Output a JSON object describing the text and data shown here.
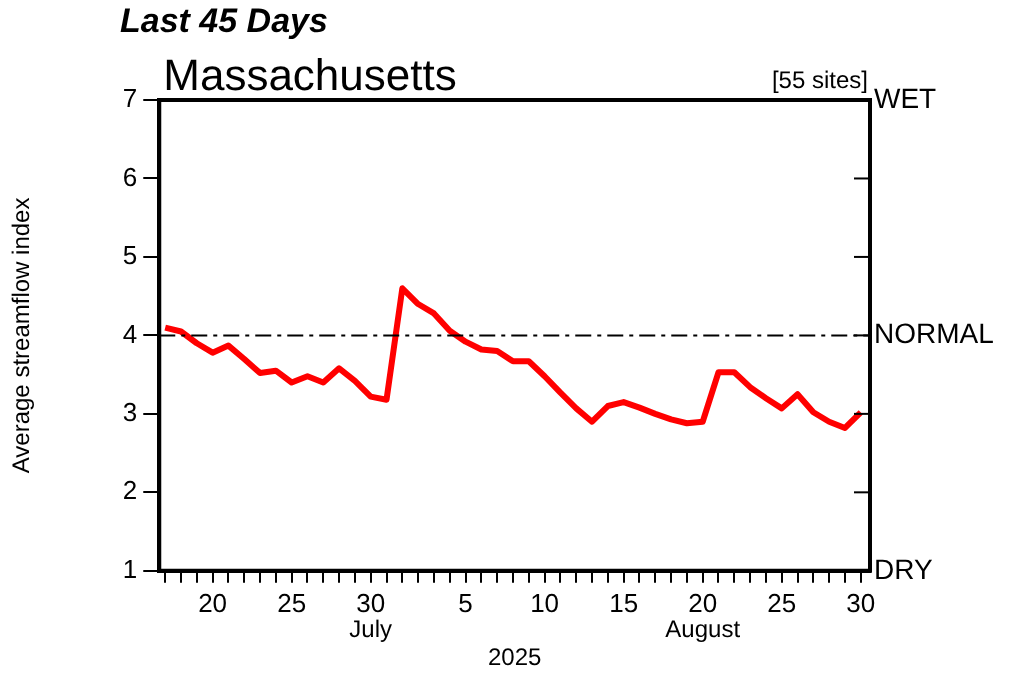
{
  "chart_data": {
    "type": "line",
    "title": "Last 45 Days",
    "subtitle": "Massachusetts",
    "xlabel": "2025",
    "ylabel": "Average streamflow index",
    "annotations": [
      "[55 sites]",
      "July",
      "August",
      "WET",
      "DRY"
    ],
    "x": [
      "2025-07-17",
      "2025-07-18",
      "2025-07-19",
      "2025-07-20",
      "2025-07-21",
      "2025-07-22",
      "2025-07-23",
      "2025-07-24",
      "2025-07-25",
      "2025-07-26",
      "2025-07-27",
      "2025-07-28",
      "2025-07-29",
      "2025-07-30",
      "2025-07-31",
      "2025-08-01",
      "2025-08-02",
      "2025-08-03",
      "2025-08-04",
      "2025-08-05",
      "2025-08-06",
      "2025-08-07",
      "2025-08-08",
      "2025-08-09",
      "2025-08-10",
      "2025-08-11",
      "2025-08-12",
      "2025-08-13",
      "2025-08-14",
      "2025-08-15",
      "2025-08-16",
      "2025-08-17",
      "2025-08-18",
      "2025-08-19",
      "2025-08-20",
      "2025-08-21",
      "2025-08-22",
      "2025-08-23",
      "2025-08-24",
      "2025-08-25",
      "2025-08-26",
      "2025-08-27",
      "2025-08-28",
      "2025-08-29",
      "2025-08-30"
    ],
    "series": [
      {
        "color": "#ff0000",
        "values": [
          4.1,
          4.05,
          3.9,
          3.78,
          3.87,
          3.7,
          3.52,
          3.55,
          3.4,
          3.48,
          3.4,
          3.58,
          3.42,
          3.22,
          3.18,
          4.6,
          4.4,
          4.28,
          4.06,
          3.92,
          3.82,
          3.8,
          3.67,
          3.67,
          3.48,
          3.27,
          3.07,
          2.9,
          3.1,
          3.15,
          3.08,
          3.0,
          2.93,
          2.88,
          2.9,
          3.53,
          3.53,
          3.34,
          3.2,
          3.07,
          3.25,
          3.02,
          2.9,
          2.82,
          3.02
        ]
      }
    ],
    "xlim": [
      "2025-07-16T15:00",
      "2025-08-30T14:00"
    ],
    "xticks": [
      {
        "value": "2025-07-17",
        "label": null
      },
      {
        "value": "2025-07-18",
        "label": null
      },
      {
        "value": "2025-07-19",
        "label": null
      },
      {
        "value": "2025-07-20",
        "label": "20"
      },
      {
        "value": "2025-07-21",
        "label": null
      },
      {
        "value": "2025-07-22",
        "label": null
      },
      {
        "value": "2025-07-23",
        "label": null
      },
      {
        "value": "2025-07-24",
        "label": null
      },
      {
        "value": "2025-07-25",
        "label": "25"
      },
      {
        "value": "2025-07-26",
        "label": null
      },
      {
        "value": "2025-07-27",
        "label": null
      },
      {
        "value": "2025-07-28",
        "label": null
      },
      {
        "value": "2025-07-29",
        "label": null
      },
      {
        "value": "2025-07-30",
        "label": "30"
      },
      {
        "value": "2025-07-31",
        "label": null
      },
      {
        "value": "2025-08-01",
        "label": null
      },
      {
        "value": "2025-08-02",
        "label": null
      },
      {
        "value": "2025-08-03",
        "label": null
      },
      {
        "value": "2025-08-04",
        "label": null
      },
      {
        "value": "2025-08-05",
        "label": "5"
      },
      {
        "value": "2025-08-06",
        "label": null
      },
      {
        "value": "2025-08-07",
        "label": null
      },
      {
        "value": "2025-08-08",
        "label": null
      },
      {
        "value": "2025-08-09",
        "label": null
      },
      {
        "value": "2025-08-10",
        "label": "10"
      },
      {
        "value": "2025-08-11",
        "label": null
      },
      {
        "value": "2025-08-12",
        "label": null
      },
      {
        "value": "2025-08-13",
        "label": null
      },
      {
        "value": "2025-08-14",
        "label": null
      },
      {
        "value": "2025-08-15",
        "label": "15"
      },
      {
        "value": "2025-08-16",
        "label": null
      },
      {
        "value": "2025-08-17",
        "label": null
      },
      {
        "value": "2025-08-18",
        "label": null
      },
      {
        "value": "2025-08-19",
        "label": null
      },
      {
        "value": "2025-08-20",
        "label": "20"
      },
      {
        "value": "2025-08-21",
        "label": null
      },
      {
        "value": "2025-08-22",
        "label": null
      },
      {
        "value": "2025-08-23",
        "label": null
      },
      {
        "value": "2025-08-24",
        "label": null
      },
      {
        "value": "2025-08-25",
        "label": "25"
      },
      {
        "value": "2025-08-26",
        "label": null
      },
      {
        "value": "2025-08-27",
        "label": null
      },
      {
        "value": "2025-08-28",
        "label": null
      },
      {
        "value": "2025-08-29",
        "label": null
      },
      {
        "value": "2025-08-30",
        "label": "30"
      }
    ],
    "ylim": [
      1,
      7
    ],
    "yticks": [
      1,
      2,
      3,
      4,
      5,
      6,
      7
    ],
    "ref_lines": [
      {
        "axis": "y",
        "value": 4,
        "label": "NORMAL",
        "color": "#000000",
        "line_style": "dashdot"
      }
    ],
    "grid": false,
    "legend": false,
    "marker": "none",
    "line_style": "solid"
  }
}
